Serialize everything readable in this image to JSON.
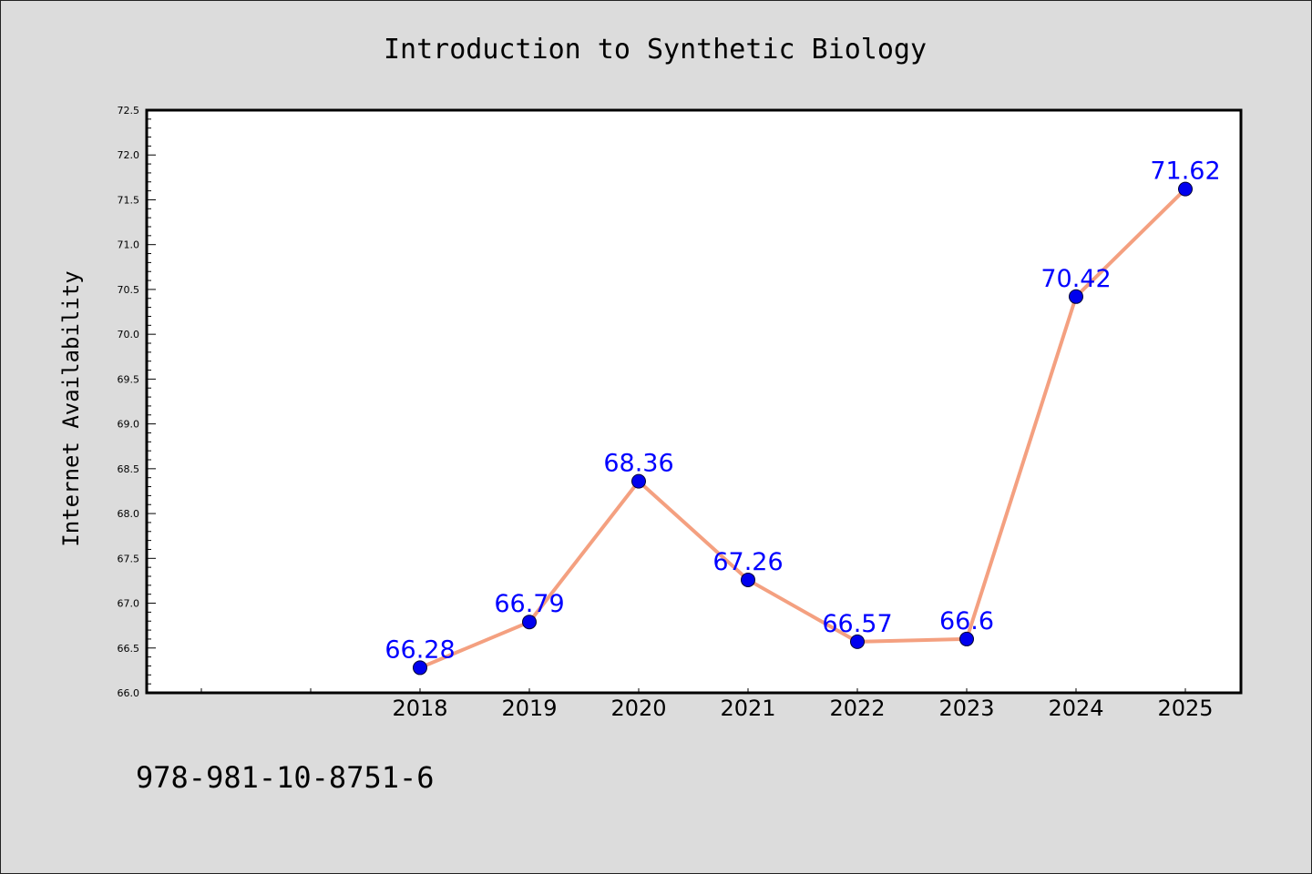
{
  "chart_data": {
    "type": "line",
    "title": "Introduction to Synthetic Biology",
    "ylabel": "Internet Availability",
    "xlabel": "",
    "categories": [
      "2018",
      "2019",
      "2020",
      "2021",
      "2022",
      "2023",
      "2024",
      "2025"
    ],
    "series": [
      {
        "values": [
          66.28,
          66.79,
          68.36,
          67.26,
          66.57,
          66.6,
          70.42,
          71.62
        ],
        "data_labels": [
          "66.28",
          "66.79",
          "68.36",
          "67.26",
          "66.57",
          "66.6",
          "70.42",
          "71.62"
        ],
        "line_color": "#f4a080",
        "marker_color": "#0000ee",
        "label_color": "#0000ff"
      }
    ],
    "ylim": [
      66.0,
      72.5
    ],
    "yticks": [
      "66.0",
      "66.5",
      "67.0",
      "67.5",
      "68.0",
      "68.5",
      "69.0",
      "69.5",
      "70.0",
      "70.5",
      "71.0",
      "71.5",
      "72.0",
      "72.5"
    ],
    "grid": false,
    "legend": "none"
  },
  "footer": {
    "isbn": "978-981-10-8751-6"
  },
  "colors": {
    "background": "#dcdcdc",
    "plot_background": "#ffffff",
    "axis": "#000000"
  }
}
